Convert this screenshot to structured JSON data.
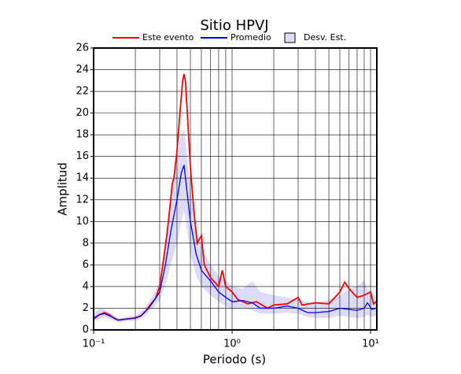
{
  "chart_data": {
    "type": "line",
    "title": "Sitio HPVJ",
    "x_label": "Periodo (s)",
    "y_label": "Amplitud",
    "x_scale": "log",
    "xlim": [
      0.1,
      11.1
    ],
    "ylim": [
      0,
      26
    ],
    "xticks": [
      {
        "value": 0.1,
        "label": "10⁻¹"
      },
      {
        "value": 1,
        "label": "10⁰"
      },
      {
        "value": 10,
        "label": "10¹"
      }
    ],
    "xgrid_minor": [
      0.2,
      0.3,
      0.4,
      0.5,
      0.6,
      0.7,
      0.8,
      0.9,
      2,
      3,
      4,
      5,
      6,
      7,
      8,
      9
    ],
    "yticks": [
      0,
      2,
      4,
      6,
      8,
      10,
      12,
      14,
      16,
      18,
      20,
      22,
      24,
      26
    ],
    "grid": true,
    "series": [
      {
        "name": "Este evento",
        "color": "#ff0000",
        "x": [
          0.1,
          0.11,
          0.12,
          0.13,
          0.14,
          0.15,
          0.17,
          0.2,
          0.22,
          0.24,
          0.26,
          0.28,
          0.3,
          0.32,
          0.34,
          0.36,
          0.37,
          0.38,
          0.4,
          0.42,
          0.44,
          0.45,
          0.46,
          0.48,
          0.5,
          0.53,
          0.56,
          0.6,
          0.63,
          0.7,
          0.8,
          0.85,
          0.9,
          1.0,
          1.1,
          1.3,
          1.5,
          1.8,
          2.0,
          2.5,
          3.0,
          3.2,
          4,
          5,
          6,
          6.5,
          7,
          8,
          9,
          10,
          10.5,
          11
        ],
        "values": [
          1.0,
          1.4,
          1.6,
          1.4,
          1.1,
          0.9,
          1.0,
          1.1,
          1.3,
          1.8,
          2.4,
          2.9,
          4.0,
          6.5,
          9.0,
          12.0,
          13.5,
          14.0,
          16.5,
          20.0,
          23.0,
          23.6,
          23.0,
          19.0,
          15.0,
          11.0,
          8.0,
          8.7,
          6.0,
          4.8,
          4.0,
          5.5,
          4.0,
          3.5,
          2.8,
          2.4,
          2.6,
          2.0,
          2.3,
          2.4,
          3.0,
          2.3,
          2.5,
          2.4,
          3.5,
          4.4,
          3.8,
          3.0,
          3.2,
          3.5,
          2.4,
          2.6
        ]
      },
      {
        "name": "Promedio",
        "color": "#0000ff",
        "x": [
          0.1,
          0.11,
          0.12,
          0.13,
          0.15,
          0.2,
          0.22,
          0.25,
          0.28,
          0.3,
          0.33,
          0.36,
          0.4,
          0.43,
          0.45,
          0.47,
          0.5,
          0.55,
          0.6,
          0.7,
          0.8,
          0.9,
          1.0,
          1.2,
          1.4,
          1.6,
          2,
          2.5,
          3,
          3.5,
          4,
          5,
          6,
          7,
          8,
          9,
          9.5,
          10.2,
          11
        ],
        "values": [
          1.1,
          1.4,
          1.5,
          1.3,
          0.9,
          1.1,
          1.3,
          2.0,
          2.9,
          3.5,
          6.0,
          9.0,
          12.0,
          14.5,
          15.2,
          13.0,
          10.0,
          7.0,
          5.5,
          4.5,
          3.5,
          3.0,
          2.6,
          2.7,
          2.5,
          2.0,
          2.0,
          2.2,
          2.0,
          1.6,
          1.6,
          1.7,
          2.0,
          1.9,
          1.8,
          2.0,
          2.5,
          1.9,
          2.0
        ]
      }
    ],
    "band": {
      "name": "Desv. Est.",
      "color": "#dcdcf8",
      "x": [
        0.1,
        0.11,
        0.12,
        0.13,
        0.15,
        0.2,
        0.22,
        0.25,
        0.28,
        0.3,
        0.33,
        0.36,
        0.4,
        0.43,
        0.45,
        0.47,
        0.5,
        0.55,
        0.6,
        0.7,
        0.8,
        0.9,
        1.0,
        1.2,
        1.4,
        1.6,
        2,
        2.5,
        3,
        3.5,
        4,
        5,
        6,
        7,
        8,
        9,
        9.5,
        10.2,
        11
      ],
      "upper": [
        1.5,
        2.0,
        1.9,
        1.6,
        1.1,
        1.3,
        1.6,
        2.6,
        3.6,
        4.5,
        8.0,
        12.0,
        16.0,
        18.0,
        18.5,
        16.5,
        13.0,
        9.5,
        7.5,
        6.0,
        5.0,
        4.5,
        4.0,
        3.8,
        4.5,
        3.5,
        3.2,
        3.0,
        2.8,
        2.6,
        2.4,
        2.8,
        3.2,
        3.8,
        4.0,
        4.6,
        3.8,
        3.5,
        3.0
      ],
      "lower": [
        0.8,
        1.0,
        1.1,
        1.0,
        0.7,
        0.9,
        1.0,
        1.6,
        2.3,
        2.7,
        4.2,
        6.0,
        8.0,
        10.0,
        11.0,
        9.5,
        7.0,
        5.0,
        4.0,
        3.2,
        2.6,
        2.2,
        1.9,
        2.0,
        1.8,
        1.5,
        1.5,
        1.6,
        1.5,
        1.2,
        1.1,
        1.1,
        1.3,
        1.2,
        1.1,
        1.2,
        1.4,
        1.2,
        1.3
      ]
    }
  }
}
